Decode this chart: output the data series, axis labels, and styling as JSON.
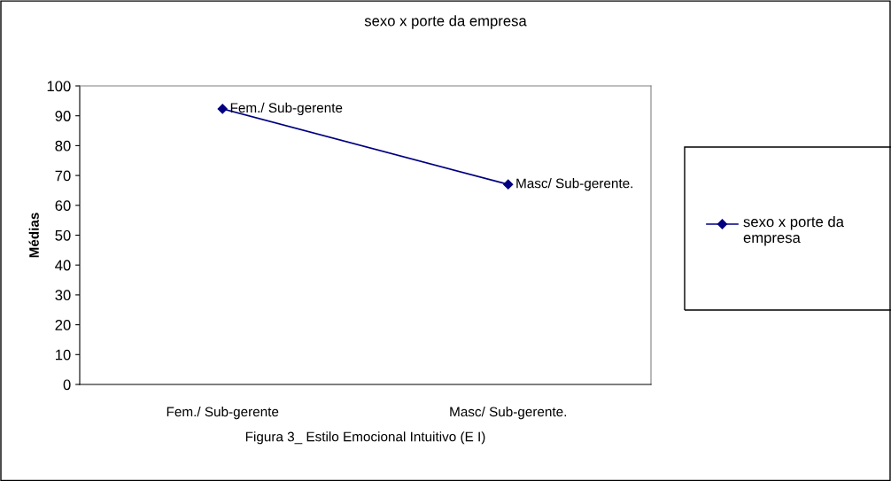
{
  "chart_data": {
    "type": "line",
    "title": "sexo x porte da empresa",
    "xlabel": "Figura 3_ Estilo Emocional Intuitivo (E I)",
    "ylabel": "Médias",
    "categories": [
      "Fem./ Sub-gerente",
      "Masc/ Sub-gerente."
    ],
    "series": [
      {
        "name": "sexo x porte da empresa",
        "color": "#000080",
        "values": [
          92.3,
          67
        ]
      }
    ],
    "annotations": [
      {
        "text": "Fem./ Sub-gerente",
        "x": "Fem./ Sub-gerente",
        "y": 92.3
      },
      {
        "text": "Masc/ Sub-gerente.",
        "x": "Masc/ Sub-gerente.",
        "y": 67
      }
    ],
    "ylim": [
      0,
      100
    ],
    "yticks": [
      0,
      10,
      20,
      30,
      40,
      50,
      60,
      70,
      80,
      90,
      100
    ],
    "marker": "diamond",
    "line_style": "solid",
    "legend": "right",
    "grid": false
  }
}
